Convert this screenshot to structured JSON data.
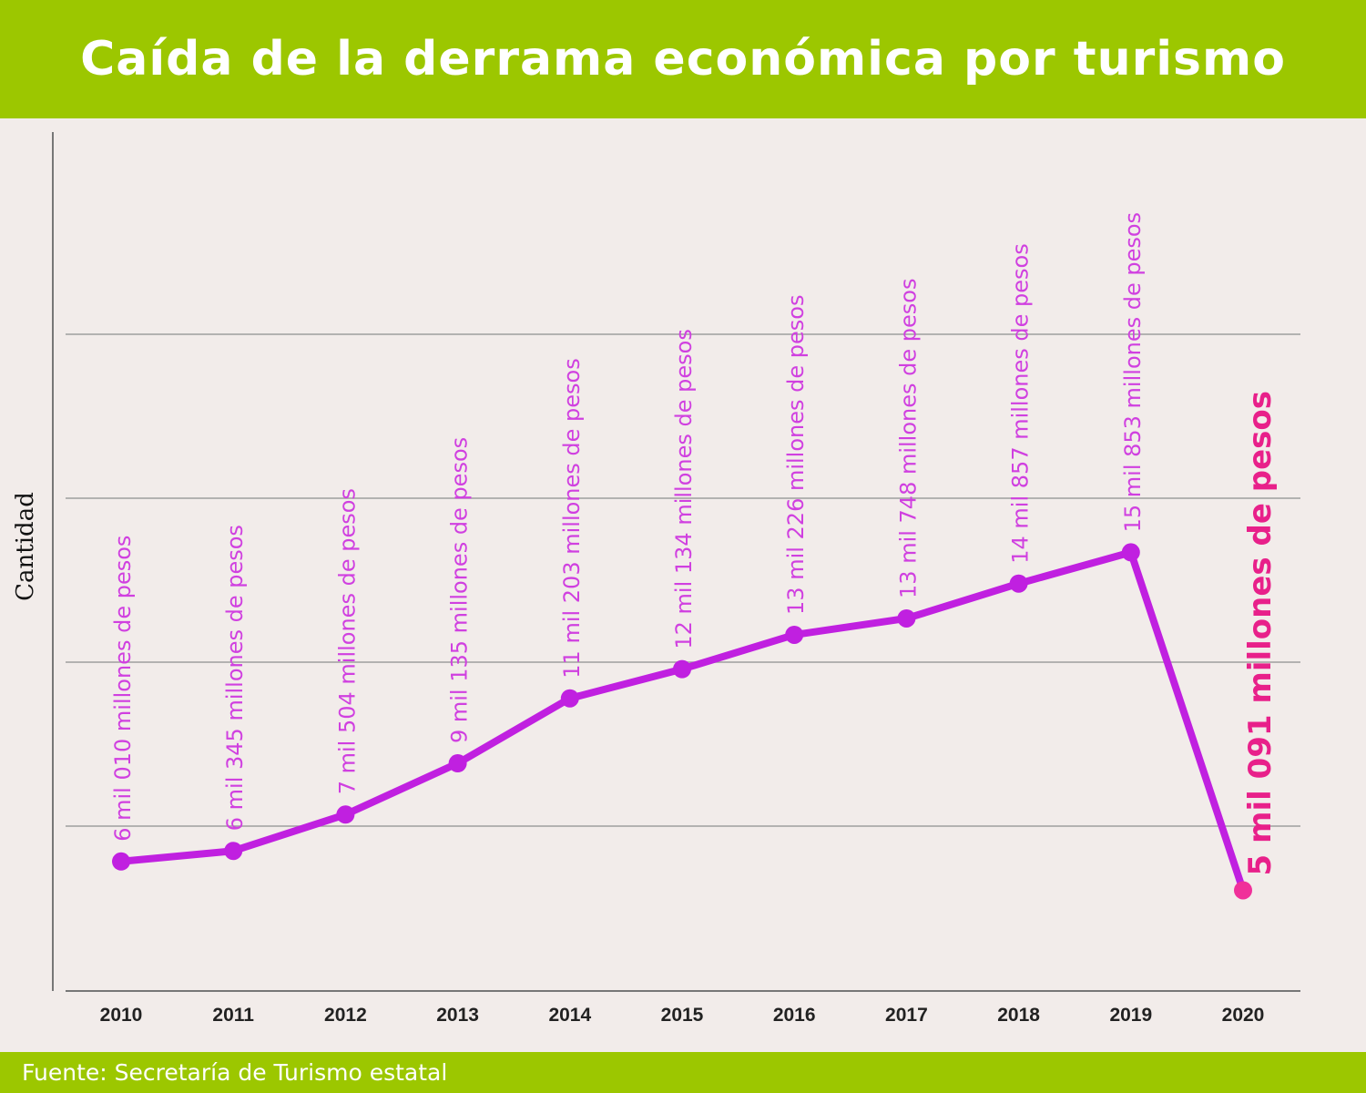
{
  "title": "Caída de la derrama económica por turismo",
  "source": "Fuente: Secretaría de Turismo estatal",
  "colors": {
    "header_bg": "#9cc700",
    "line": "#c020e0",
    "last_point": "#f0309a",
    "label": "#d040e0",
    "last_label": "#e8208a"
  },
  "chart_data": {
    "type": "line",
    "title": "Caída de la derrama económica por turismo",
    "xlabel": "",
    "ylabel": "Cantidad",
    "grid": true,
    "x": [
      "2010",
      "2011",
      "2012",
      "2013",
      "2014",
      "2015",
      "2016",
      "2017",
      "2018",
      "2019",
      "2020"
    ],
    "values": [
      6010,
      6345,
      7504,
      9135,
      11203,
      12134,
      13226,
      13748,
      14857,
      15853,
      5091
    ],
    "data_labels": [
      "6 mil 010 millones de pesos",
      "6 mil 345 millones de pesos",
      "7 mil 504 millones de pesos",
      "9 mil 135 millones de pesos",
      "11 mil 203 millones de pesos",
      "12 mil 134 millones de pesos",
      "13 mil 226 millones de pesos",
      "13 mil 748 millones de pesos",
      "14 mil 857 millones de pesos",
      "15 mil 853 millones de pesos",
      "5 mil 091 millones de pesos"
    ],
    "unit": "millones de pesos"
  }
}
